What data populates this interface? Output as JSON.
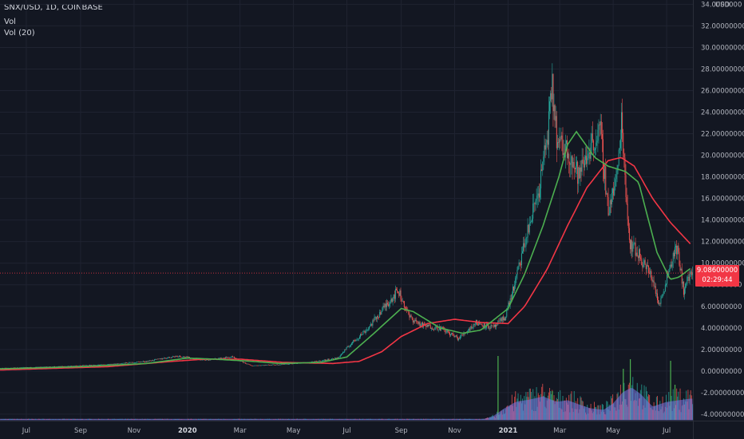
{
  "header": {
    "symbol_line": "SNX/USD, 1D, COINBASE",
    "vol_label": "Vol",
    "vol_ma_label": "Vol (20)"
  },
  "price_axis": {
    "currency": "USD",
    "labels": [
      "34.0000000",
      "32.00000000",
      "30.00000000",
      "28.00000000",
      "26.00000000",
      "24.00000000",
      "22.00000000",
      "20.00000000",
      "18.00000000",
      "16.00000000",
      "14.00000000",
      "12.00000000",
      "10.00000000",
      "8.00000000",
      "6.00000000",
      "4.00000000",
      "2.00000000",
      "0.00000000",
      "-2.00000000",
      "-4.00000000"
    ]
  },
  "last_price_tag": {
    "price": "9.08600000",
    "countdown": "02:29:44"
  },
  "colors": {
    "background": "#131722",
    "up": "#26a69a",
    "down": "#ef5350",
    "ma_fast": "#4caf50",
    "ma_slow": "#f23645",
    "volume": "#7b78e8"
  },
  "chart_data": {
    "type": "line",
    "symbol": "SNX/USD",
    "interval": "1D",
    "exchange": "COINBASE",
    "y_axis": {
      "ylim": [
        -4.6,
        34.4
      ],
      "ticks_step": 2
    },
    "x_axis": {
      "ticks": [
        {
          "label": "Jul",
          "date": "2019-07-01"
        },
        {
          "label": "Sep",
          "date": "2019-09-01"
        },
        {
          "label": "Nov",
          "date": "2019-11-01"
        },
        {
          "label": "2020",
          "date": "2020-01-01",
          "bold": true
        },
        {
          "label": "Mar",
          "date": "2020-03-01"
        },
        {
          "label": "May",
          "date": "2020-05-01"
        },
        {
          "label": "Jul",
          "date": "2020-07-01"
        },
        {
          "label": "Sep",
          "date": "2020-09-01"
        },
        {
          "label": "Nov",
          "date": "2020-11-01"
        },
        {
          "label": "2021",
          "date": "2021-01-01",
          "bold": true
        },
        {
          "label": "Mar",
          "date": "2021-03-01"
        },
        {
          "label": "May",
          "date": "2021-05-01"
        },
        {
          "label": "Jul",
          "date": "2021-07-01"
        }
      ]
    },
    "price_close": [
      {
        "date": "2019-06-01",
        "v": 0.25
      },
      {
        "date": "2019-08-01",
        "v": 0.4
      },
      {
        "date": "2019-10-01",
        "v": 0.6
      },
      {
        "date": "2019-11-15",
        "v": 0.9
      },
      {
        "date": "2019-12-20",
        "v": 1.4
      },
      {
        "date": "2020-01-20",
        "v": 1.0
      },
      {
        "date": "2020-02-20",
        "v": 1.3
      },
      {
        "date": "2020-03-13",
        "v": 0.5
      },
      {
        "date": "2020-04-15",
        "v": 0.6
      },
      {
        "date": "2020-05-20",
        "v": 0.8
      },
      {
        "date": "2020-06-20",
        "v": 1.2
      },
      {
        "date": "2020-07-05",
        "v": 2.5
      },
      {
        "date": "2020-07-25",
        "v": 4.0
      },
      {
        "date": "2020-08-15",
        "v": 6.2
      },
      {
        "date": "2020-08-28",
        "v": 7.5
      },
      {
        "date": "2020-09-10",
        "v": 5.0
      },
      {
        "date": "2020-09-25",
        "v": 4.2
      },
      {
        "date": "2020-10-15",
        "v": 4.0
      },
      {
        "date": "2020-11-05",
        "v": 3.0
      },
      {
        "date": "2020-11-25",
        "v": 4.5
      },
      {
        "date": "2020-12-15",
        "v": 4.0
      },
      {
        "date": "2020-12-28",
        "v": 5.0
      },
      {
        "date": "2021-01-08",
        "v": 8.0
      },
      {
        "date": "2021-01-20",
        "v": 12.0
      },
      {
        "date": "2021-02-05",
        "v": 17.0
      },
      {
        "date": "2021-02-14",
        "v": 21.5
      },
      {
        "date": "2021-02-20",
        "v": 26.0
      },
      {
        "date": "2021-02-26",
        "v": 21.0
      },
      {
        "date": "2021-03-10",
        "v": 20.5
      },
      {
        "date": "2021-03-22",
        "v": 18.0
      },
      {
        "date": "2021-04-05",
        "v": 21.0
      },
      {
        "date": "2021-04-16",
        "v": 22.0
      },
      {
        "date": "2021-04-25",
        "v": 15.0
      },
      {
        "date": "2021-05-05",
        "v": 18.0
      },
      {
        "date": "2021-05-10",
        "v": 23.5
      },
      {
        "date": "2021-05-19",
        "v": 12.0
      },
      {
        "date": "2021-06-01",
        "v": 10.5
      },
      {
        "date": "2021-06-15",
        "v": 8.5
      },
      {
        "date": "2021-06-22",
        "v": 6.0
      },
      {
        "date": "2021-07-05",
        "v": 10.0
      },
      {
        "date": "2021-07-12",
        "v": 11.5
      },
      {
        "date": "2021-07-20",
        "v": 7.5
      },
      {
        "date": "2021-07-28",
        "v": 9.1
      }
    ],
    "ma_fast": [
      {
        "date": "2019-06-01",
        "v": 0.2
      },
      {
        "date": "2019-09-01",
        "v": 0.4
      },
      {
        "date": "2019-11-15",
        "v": 0.7
      },
      {
        "date": "2020-01-01",
        "v": 1.2
      },
      {
        "date": "2020-02-01",
        "v": 1.1
      },
      {
        "date": "2020-03-15",
        "v": 0.9
      },
      {
        "date": "2020-04-15",
        "v": 0.7
      },
      {
        "date": "2020-06-01",
        "v": 0.8
      },
      {
        "date": "2020-07-01",
        "v": 1.3
      },
      {
        "date": "2020-08-01",
        "v": 3.5
      },
      {
        "date": "2020-09-01",
        "v": 5.8
      },
      {
        "date": "2020-09-15",
        "v": 5.5
      },
      {
        "date": "2020-10-15",
        "v": 4.0
      },
      {
        "date": "2020-11-10",
        "v": 3.5
      },
      {
        "date": "2020-12-01",
        "v": 3.8
      },
      {
        "date": "2021-01-01",
        "v": 5.8
      },
      {
        "date": "2021-01-20",
        "v": 9.0
      },
      {
        "date": "2021-02-10",
        "v": 13.5
      },
      {
        "date": "2021-02-28",
        "v": 18.0
      },
      {
        "date": "2021-03-10",
        "v": 21.0
      },
      {
        "date": "2021-03-20",
        "v": 22.2
      },
      {
        "date": "2021-04-10",
        "v": 19.8
      },
      {
        "date": "2021-04-25",
        "v": 19.0
      },
      {
        "date": "2021-05-15",
        "v": 18.5
      },
      {
        "date": "2021-05-30",
        "v": 17.5
      },
      {
        "date": "2021-06-20",
        "v": 11.0
      },
      {
        "date": "2021-07-05",
        "v": 8.5
      },
      {
        "date": "2021-07-15",
        "v": 8.7
      },
      {
        "date": "2021-07-28",
        "v": 9.5
      }
    ],
    "ma_slow": [
      {
        "date": "2019-06-01",
        "v": 0.1
      },
      {
        "date": "2019-10-01",
        "v": 0.4
      },
      {
        "date": "2019-12-15",
        "v": 0.9
      },
      {
        "date": "2020-01-20",
        "v": 1.1
      },
      {
        "date": "2020-03-01",
        "v": 1.1
      },
      {
        "date": "2020-04-20",
        "v": 0.8
      },
      {
        "date": "2020-06-15",
        "v": 0.7
      },
      {
        "date": "2020-07-15",
        "v": 0.9
      },
      {
        "date": "2020-08-10",
        "v": 1.8
      },
      {
        "date": "2020-09-01",
        "v": 3.2
      },
      {
        "date": "2020-10-01",
        "v": 4.4
      },
      {
        "date": "2020-11-01",
        "v": 4.8
      },
      {
        "date": "2020-12-01",
        "v": 4.5
      },
      {
        "date": "2021-01-01",
        "v": 4.4
      },
      {
        "date": "2021-01-20",
        "v": 6.0
      },
      {
        "date": "2021-02-15",
        "v": 9.5
      },
      {
        "date": "2021-03-10",
        "v": 13.5
      },
      {
        "date": "2021-04-01",
        "v": 17.0
      },
      {
        "date": "2021-04-25",
        "v": 19.5
      },
      {
        "date": "2021-05-10",
        "v": 19.8
      },
      {
        "date": "2021-05-25",
        "v": 19.0
      },
      {
        "date": "2021-06-15",
        "v": 16.0
      },
      {
        "date": "2021-07-05",
        "v": 13.8
      },
      {
        "date": "2021-07-28",
        "v": 11.8
      }
    ],
    "volume_ma": [
      {
        "date": "2019-06-01",
        "v": 0.02
      },
      {
        "date": "2020-12-05",
        "v": 0.02
      },
      {
        "date": "2020-12-15",
        "v": 0.1
      },
      {
        "date": "2020-12-28",
        "v": 0.35
      },
      {
        "date": "2021-01-10",
        "v": 0.55
      },
      {
        "date": "2021-01-25",
        "v": 0.62
      },
      {
        "date": "2021-02-10",
        "v": 0.72
      },
      {
        "date": "2021-02-25",
        "v": 0.55
      },
      {
        "date": "2021-03-10",
        "v": 0.6
      },
      {
        "date": "2021-03-25",
        "v": 0.45
      },
      {
        "date": "2021-04-05",
        "v": 0.35
      },
      {
        "date": "2021-04-20",
        "v": 0.3
      },
      {
        "date": "2021-05-01",
        "v": 0.5
      },
      {
        "date": "2021-05-12",
        "v": 0.85
      },
      {
        "date": "2021-05-22",
        "v": 1.0
      },
      {
        "date": "2021-06-01",
        "v": 0.8
      },
      {
        "date": "2021-06-15",
        "v": 0.4
      },
      {
        "date": "2021-07-01",
        "v": 0.55
      },
      {
        "date": "2021-07-15",
        "v": 0.6
      },
      {
        "date": "2021-07-28",
        "v": 0.65
      }
    ],
    "volume_spikes": [
      {
        "date": "2020-12-20",
        "v": 2.0
      },
      {
        "date": "2021-02-20",
        "v": 0.9
      },
      {
        "date": "2021-05-12",
        "v": 1.6
      },
      {
        "date": "2021-05-20",
        "v": 1.9
      },
      {
        "date": "2021-07-05",
        "v": 1.85
      },
      {
        "date": "2021-07-10",
        "v": 1.1
      }
    ]
  }
}
